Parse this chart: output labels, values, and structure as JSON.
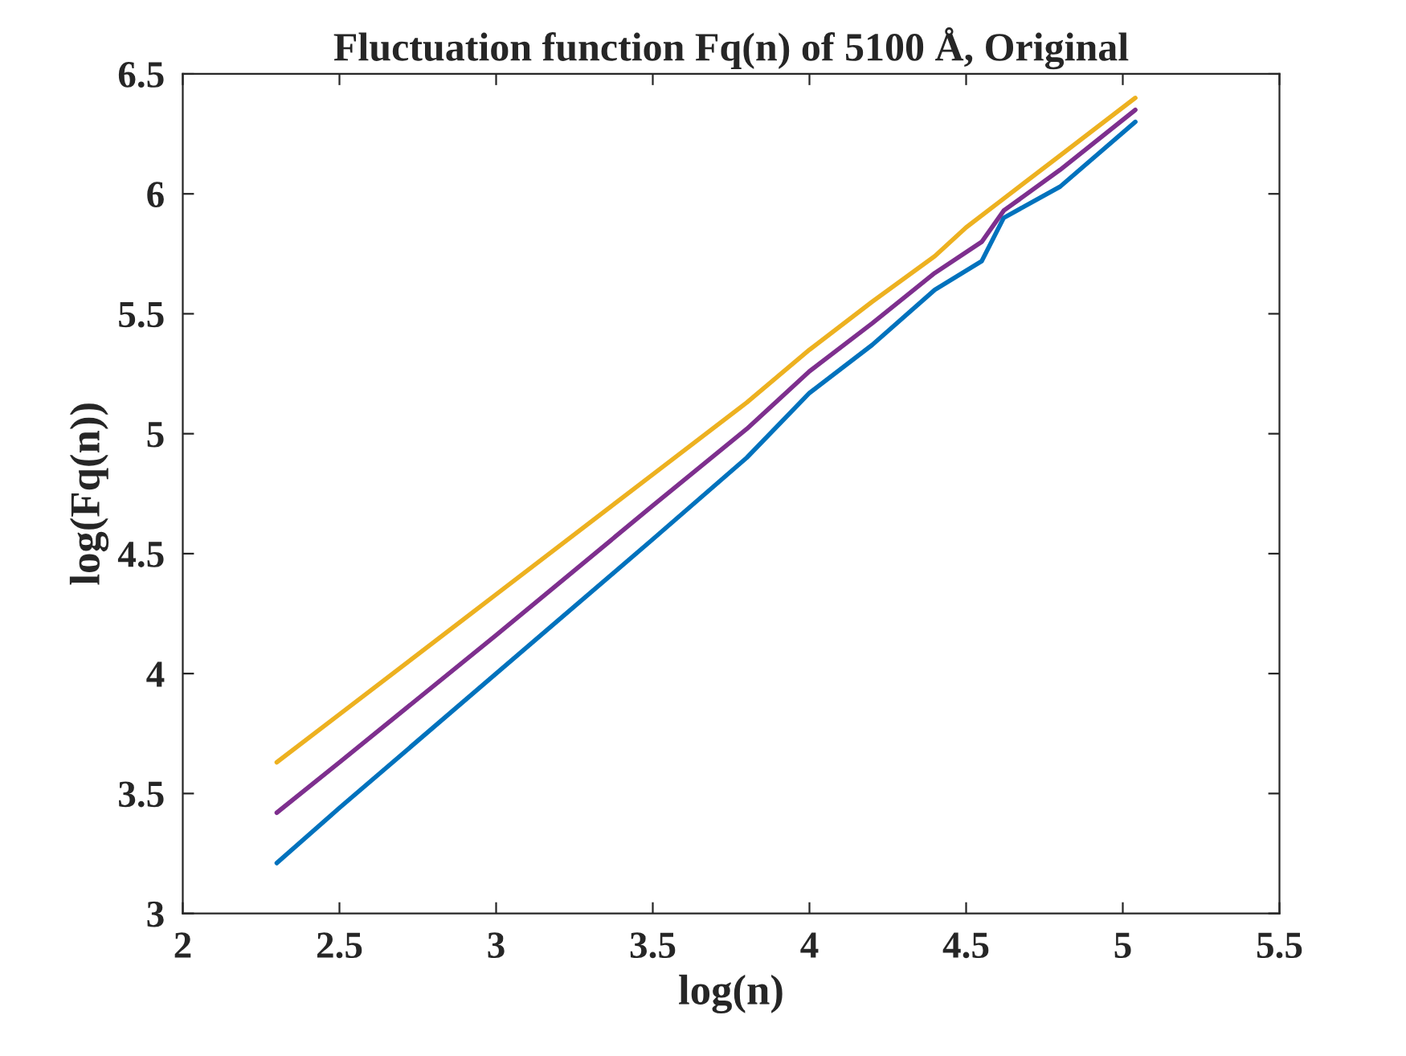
{
  "chart_data": {
    "type": "line",
    "title": "Fluctuation function Fq(n) of 5100 Å, Original",
    "xlabel": "log(n)",
    "ylabel": "log(Fq(n))",
    "xlim": [
      2,
      5.5
    ],
    "xticks": [
      2,
      2.5,
      3,
      3.5,
      4,
      4.5,
      5,
      5.5
    ],
    "ylim": [
      3,
      6.5
    ],
    "yticks": [
      3,
      3.5,
      4,
      4.5,
      5,
      5.5,
      6,
      6.5
    ],
    "grid": false,
    "marker": "none",
    "line_style": "solid",
    "series": [
      {
        "color": "#0072bd",
        "x": [
          2.3,
          2.5,
          3.0,
          3.5,
          3.8,
          4.0,
          4.2,
          4.4,
          4.55,
          4.62,
          4.8,
          5.04
        ],
        "values": [
          3.21,
          3.44,
          4.0,
          4.56,
          4.9,
          5.17,
          5.37,
          5.6,
          5.72,
          5.9,
          6.03,
          6.3
        ]
      },
      {
        "color": "#7e2f8e",
        "x": [
          2.3,
          2.5,
          3.0,
          3.5,
          3.8,
          4.0,
          4.2,
          4.4,
          4.55,
          4.62,
          4.8,
          5.04
        ],
        "values": [
          3.42,
          3.63,
          4.16,
          4.7,
          5.02,
          5.26,
          5.46,
          5.67,
          5.8,
          5.93,
          6.1,
          6.35
        ]
      },
      {
        "color": "#edb120",
        "x": [
          2.3,
          2.5,
          3.0,
          3.5,
          3.8,
          4.0,
          4.2,
          4.4,
          4.5,
          4.6,
          4.8,
          5.04
        ],
        "values": [
          3.63,
          3.83,
          4.33,
          4.83,
          5.13,
          5.35,
          5.55,
          5.74,
          5.86,
          5.96,
          6.16,
          6.4
        ]
      }
    ]
  }
}
